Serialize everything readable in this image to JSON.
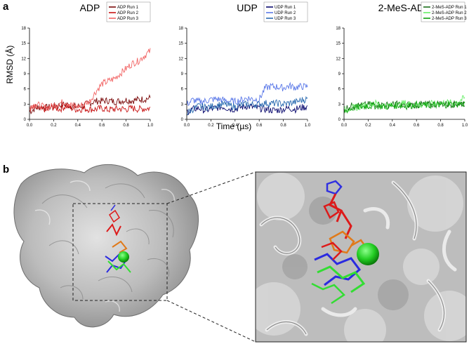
{
  "figure": {
    "panel_a_label": "a",
    "panel_b_label": "b",
    "ylabel": "RMSD (Å)",
    "xlabel": "Time (µs)"
  },
  "chart_data": [
    {
      "type": "line",
      "title": "ADP",
      "xlim": [
        0,
        1
      ],
      "ylim": [
        0,
        18
      ],
      "x_ticks": [
        "0.0",
        "0.2",
        "0.4",
        "0.6",
        "0.8",
        "1.0"
      ],
      "y_ticks": [
        "0",
        "3",
        "6",
        "9",
        "12",
        "15",
        "18"
      ],
      "legend_position": "top-right",
      "series": [
        {
          "name": "ADP Run 1",
          "color": "#7a0a0a",
          "x": [
            0,
            0.05,
            0.1,
            0.15,
            0.2,
            0.25,
            0.3,
            0.35,
            0.4,
            0.45,
            0.5,
            0.55,
            0.6,
            0.65,
            0.7,
            0.75,
            0.8,
            0.85,
            0.9,
            0.95,
            1.0
          ],
          "y": [
            1.5,
            2.2,
            2.5,
            2.3,
            2.6,
            2.8,
            3.0,
            2.6,
            2.5,
            2.8,
            3.2,
            3.6,
            3.6,
            3.7,
            3.5,
            3.6,
            3.8,
            3.7,
            3.9,
            4.0,
            4.2
          ]
        },
        {
          "name": "ADP Run 2",
          "color": "#c81414",
          "x": [
            0,
            0.05,
            0.1,
            0.15,
            0.2,
            0.25,
            0.3,
            0.35,
            0.4,
            0.45,
            0.5,
            0.55,
            0.6,
            0.65,
            0.7,
            0.75,
            0.8,
            0.85,
            0.9,
            0.95,
            1.0
          ],
          "y": [
            2.0,
            2.3,
            1.8,
            2.2,
            2.4,
            2.0,
            2.6,
            2.2,
            1.9,
            2.1,
            2.0,
            2.0,
            2.2,
            1.9,
            2.0,
            2.1,
            2.0,
            2.2,
            2.0,
            2.1,
            2.2
          ]
        },
        {
          "name": "ADP Run 3",
          "color": "#f26666",
          "x": [
            0,
            0.05,
            0.1,
            0.15,
            0.2,
            0.25,
            0.3,
            0.35,
            0.4,
            0.45,
            0.5,
            0.55,
            0.6,
            0.65,
            0.7,
            0.75,
            0.8,
            0.85,
            0.9,
            0.95,
            1.0
          ],
          "y": [
            2.5,
            3.0,
            2.6,
            2.2,
            2.8,
            3.2,
            3.5,
            2.8,
            2.5,
            3.0,
            3.6,
            5.5,
            7.0,
            7.5,
            8.0,
            9.0,
            10.0,
            11.0,
            11.5,
            12.5,
            13.5
          ]
        }
      ]
    },
    {
      "type": "line",
      "title": "UDP",
      "xlim": [
        0,
        1
      ],
      "ylim": [
        0,
        18
      ],
      "x_ticks": [
        "0.0",
        "0.2",
        "0.4",
        "0.6",
        "0.8",
        "1.0"
      ],
      "y_ticks": [
        "0",
        "3",
        "6",
        "9",
        "12",
        "15",
        "18"
      ],
      "legend_position": "top-right",
      "series": [
        {
          "name": "UDP Run 1",
          "color": "#0a0a6e",
          "x": [
            0,
            0.05,
            0.1,
            0.15,
            0.2,
            0.25,
            0.3,
            0.35,
            0.4,
            0.45,
            0.5,
            0.55,
            0.6,
            0.65,
            0.7,
            0.75,
            0.8,
            0.85,
            0.9,
            0.95,
            1.0
          ],
          "y": [
            1.5,
            2.0,
            2.2,
            1.8,
            2.0,
            2.3,
            2.5,
            2.1,
            2.0,
            2.4,
            2.6,
            2.4,
            2.2,
            2.0,
            1.8,
            1.8,
            2.0,
            2.2,
            2.0,
            2.3,
            2.5
          ]
        },
        {
          "name": "UDP Run 2",
          "color": "#5a78e8",
          "x": [
            0,
            0.05,
            0.1,
            0.15,
            0.2,
            0.25,
            0.3,
            0.35,
            0.4,
            0.45,
            0.5,
            0.55,
            0.6,
            0.65,
            0.7,
            0.75,
            0.8,
            0.85,
            0.9,
            0.95,
            1.0
          ],
          "y": [
            3.0,
            3.8,
            3.5,
            3.6,
            3.9,
            4.0,
            3.8,
            3.6,
            3.5,
            3.8,
            4.2,
            4.0,
            3.9,
            6.2,
            6.5,
            6.4,
            6.2,
            6.6,
            6.3,
            6.5,
            6.4
          ]
        },
        {
          "name": "UDP Run 3",
          "color": "#2a6bb0",
          "x": [
            0,
            0.05,
            0.1,
            0.15,
            0.2,
            0.25,
            0.3,
            0.35,
            0.4,
            0.45,
            0.5,
            0.55,
            0.6,
            0.65,
            0.7,
            0.75,
            0.8,
            0.85,
            0.9,
            0.95,
            1.0
          ],
          "y": [
            1.2,
            2.0,
            2.6,
            2.4,
            2.5,
            2.8,
            3.0,
            2.7,
            2.5,
            2.8,
            3.0,
            2.9,
            3.0,
            3.2,
            3.1,
            3.2,
            3.0,
            3.2,
            3.4,
            3.8,
            4.0
          ]
        }
      ]
    },
    {
      "type": "line",
      "title": "2-MeS-ADP",
      "xlim": [
        0,
        1
      ],
      "ylim": [
        0,
        18
      ],
      "x_ticks": [
        "0.0",
        "0.2",
        "0.4",
        "0.6",
        "0.8",
        "1.0"
      ],
      "y_ticks": [
        "0",
        "3",
        "6",
        "9",
        "12",
        "15",
        "18"
      ],
      "legend_position": "top-right",
      "series": [
        {
          "name": "2-MeS-ADP Run 1",
          "color": "#1a6e1a",
          "x": [
            0,
            0.05,
            0.1,
            0.15,
            0.2,
            0.25,
            0.3,
            0.35,
            0.4,
            0.45,
            0.5,
            0.55,
            0.6,
            0.65,
            0.7,
            0.75,
            0.8,
            0.85,
            0.9,
            0.95,
            1.0
          ],
          "y": [
            2.0,
            2.6,
            2.8,
            2.7,
            2.9,
            3.0,
            2.9,
            2.8,
            2.9,
            3.0,
            2.8,
            2.9,
            2.8,
            3.0,
            2.9,
            3.0,
            3.1,
            3.0,
            3.0,
            3.1,
            3.2
          ]
        },
        {
          "name": "2-MeS-ADP Run 2",
          "color": "#66ee66",
          "x": [
            0,
            0.05,
            0.1,
            0.15,
            0.2,
            0.25,
            0.3,
            0.35,
            0.4,
            0.45,
            0.5,
            0.55,
            0.6,
            0.65,
            0.7,
            0.75,
            0.8,
            0.85,
            0.9,
            0.95,
            1.0
          ],
          "y": [
            1.8,
            2.2,
            2.3,
            2.6,
            2.8,
            3.2,
            3.0,
            2.6,
            2.7,
            2.9,
            3.2,
            3.0,
            2.8,
            2.9,
            3.1,
            3.0,
            3.2,
            3.3,
            3.2,
            3.6,
            4.2
          ]
        },
        {
          "name": "2-MeS-ADP Run 3",
          "color": "#0d9e0d",
          "x": [
            0,
            0.05,
            0.1,
            0.15,
            0.2,
            0.25,
            0.3,
            0.35,
            0.4,
            0.45,
            0.5,
            0.55,
            0.6,
            0.65,
            0.7,
            0.75,
            0.8,
            0.85,
            0.9,
            0.95,
            1.0
          ],
          "y": [
            1.6,
            2.1,
            2.4,
            2.5,
            2.6,
            2.7,
            2.6,
            2.5,
            2.7,
            2.8,
            2.6,
            2.7,
            2.9,
            2.8,
            2.7,
            2.8,
            2.9,
            2.9,
            3.0,
            3.0,
            3.1
          ]
        }
      ]
    }
  ]
}
